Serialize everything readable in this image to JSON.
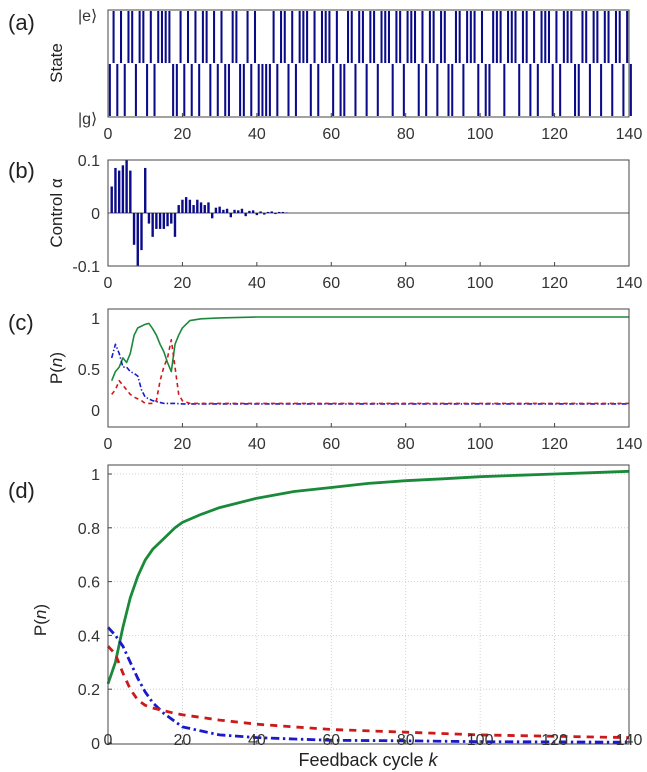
{
  "chart_data": [
    {
      "panel": "(a)",
      "type": "bar",
      "ylabel": "State",
      "ytick_labels": [
        "|e⟩",
        "|g⟩"
      ],
      "xlim": [
        0,
        140
      ],
      "xticks": [
        0,
        20,
        40,
        60,
        80,
        100,
        120,
        140
      ],
      "states": [
        "g",
        "e",
        "g",
        "e",
        "g",
        "e",
        "e",
        "g",
        "e",
        "e",
        "g",
        "e",
        "g",
        "e",
        "e",
        "e",
        "e",
        "g",
        "g",
        "e",
        "g",
        "e",
        "g",
        "e",
        "g",
        "e",
        "e",
        "g",
        "e",
        "g",
        "e",
        "g",
        "g",
        "e",
        "e",
        "g",
        "g",
        "e",
        "g",
        "e",
        "g",
        "g",
        "g",
        "g",
        "e",
        "g",
        "e",
        "e",
        "g",
        "e",
        "g",
        "e",
        "e",
        "e",
        "g",
        "e",
        "g",
        "e",
        "e",
        "e",
        "g",
        "e",
        "g",
        "g",
        "e",
        "e",
        "g",
        "e",
        "e",
        "g",
        "e",
        "e",
        "g",
        "e",
        "e",
        "e",
        "g",
        "e",
        "e",
        "g",
        "e",
        "e",
        "e",
        "g",
        "e",
        "g",
        "e",
        "e",
        "g",
        "e",
        "e",
        "g",
        "g",
        "e",
        "e",
        "g",
        "e",
        "e",
        "e",
        "g",
        "e",
        "g",
        "g",
        "e",
        "e",
        "e",
        "g",
        "e",
        "e",
        "e",
        "g",
        "e",
        "e",
        "g",
        "e",
        "g",
        "e",
        "e",
        "e",
        "g",
        "e",
        "g",
        "e",
        "e",
        "e",
        "g",
        "g",
        "e",
        "e",
        "g",
        "e",
        "e",
        "g",
        "e",
        "e",
        "g",
        "e",
        "e",
        "g",
        "e",
        "g"
      ]
    },
    {
      "panel": "(b)",
      "type": "bar",
      "ylabel": "Control α",
      "xlim": [
        0,
        140
      ],
      "ylim": [
        -0.1,
        0.1
      ],
      "xticks": [
        0,
        20,
        40,
        60,
        80,
        100,
        120,
        140
      ],
      "ytick_labels": [
        "0.1",
        "0",
        "-0.1"
      ],
      "x": [
        1,
        2,
        3,
        4,
        5,
        6,
        7,
        8,
        9,
        10,
        11,
        12,
        13,
        14,
        15,
        16,
        17,
        18,
        19,
        20,
        21,
        22,
        23,
        24,
        25,
        26,
        27,
        28,
        29,
        30,
        31,
        32,
        33,
        34,
        35,
        36,
        37,
        38,
        39,
        40,
        41,
        42,
        43,
        44,
        45,
        46,
        47,
        48
      ],
      "values": [
        0.05,
        0.085,
        0.08,
        0.09,
        0.1,
        0.08,
        -0.06,
        -0.1,
        -0.07,
        0.085,
        -0.02,
        -0.045,
        -0.03,
        -0.03,
        -0.03,
        -0.025,
        -0.02,
        -0.045,
        0.015,
        0.025,
        0.03,
        0.025,
        0.015,
        0.025,
        0.02,
        0.015,
        0.02,
        -0.01,
        0.01,
        0.012,
        0.006,
        0.008,
        -0.008,
        0.006,
        0.005,
        0.008,
        -0.006,
        0.004,
        0.005,
        -0.004,
        0.003,
        -0.003,
        0.002,
        0.003,
        -0.002,
        0.002,
        0.002,
        0.001
      ]
    },
    {
      "panel": "(c)",
      "type": "line",
      "ylabel": "P(n)",
      "xlim": [
        0,
        140
      ],
      "ylim": [
        0,
        1
      ],
      "xticks": [
        0,
        20,
        40,
        60,
        80,
        100,
        120,
        140
      ],
      "ytick_labels": [
        "1",
        "0.5",
        "0"
      ],
      "series": [
        {
          "color": "#1a8a3a",
          "dash": "solid",
          "x": [
            1,
            2,
            3,
            4,
            5,
            6,
            7,
            8,
            9,
            10,
            11,
            12,
            13,
            14,
            15,
            16,
            17,
            18,
            19,
            20,
            22,
            25,
            30,
            40,
            60,
            80,
            100,
            120,
            140
          ],
          "values": [
            0.3,
            0.4,
            0.45,
            0.55,
            0.5,
            0.6,
            0.8,
            0.88,
            0.9,
            0.92,
            0.93,
            0.87,
            0.8,
            0.7,
            0.62,
            0.5,
            0.4,
            0.7,
            0.8,
            0.88,
            0.96,
            0.98,
            0.99,
            1.0,
            1.0,
            1.0,
            1.0,
            1.0,
            1.0
          ]
        },
        {
          "color": "#1a1acc",
          "dash": "dashdot",
          "x": [
            1,
            2,
            3,
            4,
            5,
            6,
            7,
            8,
            9,
            10,
            11,
            12,
            15,
            18,
            20,
            25,
            30,
            40,
            60,
            80,
            100,
            120,
            140
          ],
          "values": [
            0.55,
            0.7,
            0.6,
            0.45,
            0.45,
            0.4,
            0.38,
            0.35,
            0.2,
            0.12,
            0.1,
            0.08,
            0.05,
            0.05,
            0.045,
            0.045,
            0.045,
            0.045,
            0.045,
            0.045,
            0.045,
            0.045,
            0.045
          ]
        },
        {
          "color": "#cc1a1a",
          "dash": "dashed",
          "x": [
            1,
            2,
            3,
            4,
            5,
            6,
            7,
            8,
            9,
            10,
            11,
            12,
            13,
            14,
            15,
            16,
            17,
            18,
            19,
            20,
            22,
            25,
            30,
            40,
            60,
            80,
            100,
            120,
            140
          ],
          "values": [
            0.15,
            0.2,
            0.3,
            0.25,
            0.2,
            0.15,
            0.12,
            0.1,
            0.08,
            0.05,
            0.05,
            0.05,
            0.08,
            0.3,
            0.45,
            0.55,
            0.75,
            0.45,
            0.15,
            0.08,
            0.05,
            0.05,
            0.05,
            0.05,
            0.05,
            0.05,
            0.05,
            0.05,
            0.05
          ]
        }
      ]
    },
    {
      "panel": "(d)",
      "type": "line",
      "xlabel": "Feedback cycle",
      "xlabel_var": "k",
      "ylabel": "P(n)",
      "xlim": [
        0,
        140
      ],
      "ylim": [
        0,
        1
      ],
      "grid": true,
      "xticks": [
        0,
        20,
        40,
        60,
        80,
        100,
        120,
        140
      ],
      "yticks": [
        0,
        0.2,
        0.4,
        0.6,
        0.8,
        1
      ],
      "ytick_labels": [
        "0",
        "0.2",
        "0.4",
        "0.6",
        "0.8",
        "1"
      ],
      "series": [
        {
          "color": "#1a8a3a",
          "dash": "solid",
          "x": [
            0,
            2,
            4,
            6,
            8,
            10,
            12,
            15,
            18,
            20,
            25,
            30,
            40,
            50,
            60,
            70,
            80,
            90,
            100,
            110,
            120,
            130,
            140
          ],
          "values": [
            0.22,
            0.3,
            0.43,
            0.54,
            0.62,
            0.68,
            0.72,
            0.76,
            0.8,
            0.82,
            0.85,
            0.875,
            0.91,
            0.935,
            0.95,
            0.965,
            0.975,
            0.982,
            0.99,
            0.995,
            1.0,
            1.005,
            1.01
          ]
        },
        {
          "color": "#1a1acc",
          "dash": "dashdot",
          "x": [
            0,
            2,
            4,
            6,
            8,
            10,
            12,
            15,
            18,
            20,
            25,
            30,
            40,
            50,
            60,
            80,
            100,
            120,
            140
          ],
          "values": [
            0.43,
            0.4,
            0.36,
            0.3,
            0.24,
            0.19,
            0.15,
            0.11,
            0.08,
            0.06,
            0.045,
            0.03,
            0.02,
            0.015,
            0.01,
            0.008,
            0.005,
            0.004,
            0.003
          ]
        },
        {
          "color": "#cc1a1a",
          "dash": "dashed",
          "x": [
            0,
            2,
            4,
            6,
            8,
            10,
            12,
            15,
            18,
            20,
            25,
            30,
            40,
            50,
            60,
            80,
            100,
            120,
            140
          ],
          "values": [
            0.36,
            0.33,
            0.26,
            0.2,
            0.16,
            0.14,
            0.13,
            0.12,
            0.11,
            0.105,
            0.095,
            0.085,
            0.07,
            0.06,
            0.05,
            0.04,
            0.03,
            0.025,
            0.02
          ]
        }
      ]
    }
  ]
}
